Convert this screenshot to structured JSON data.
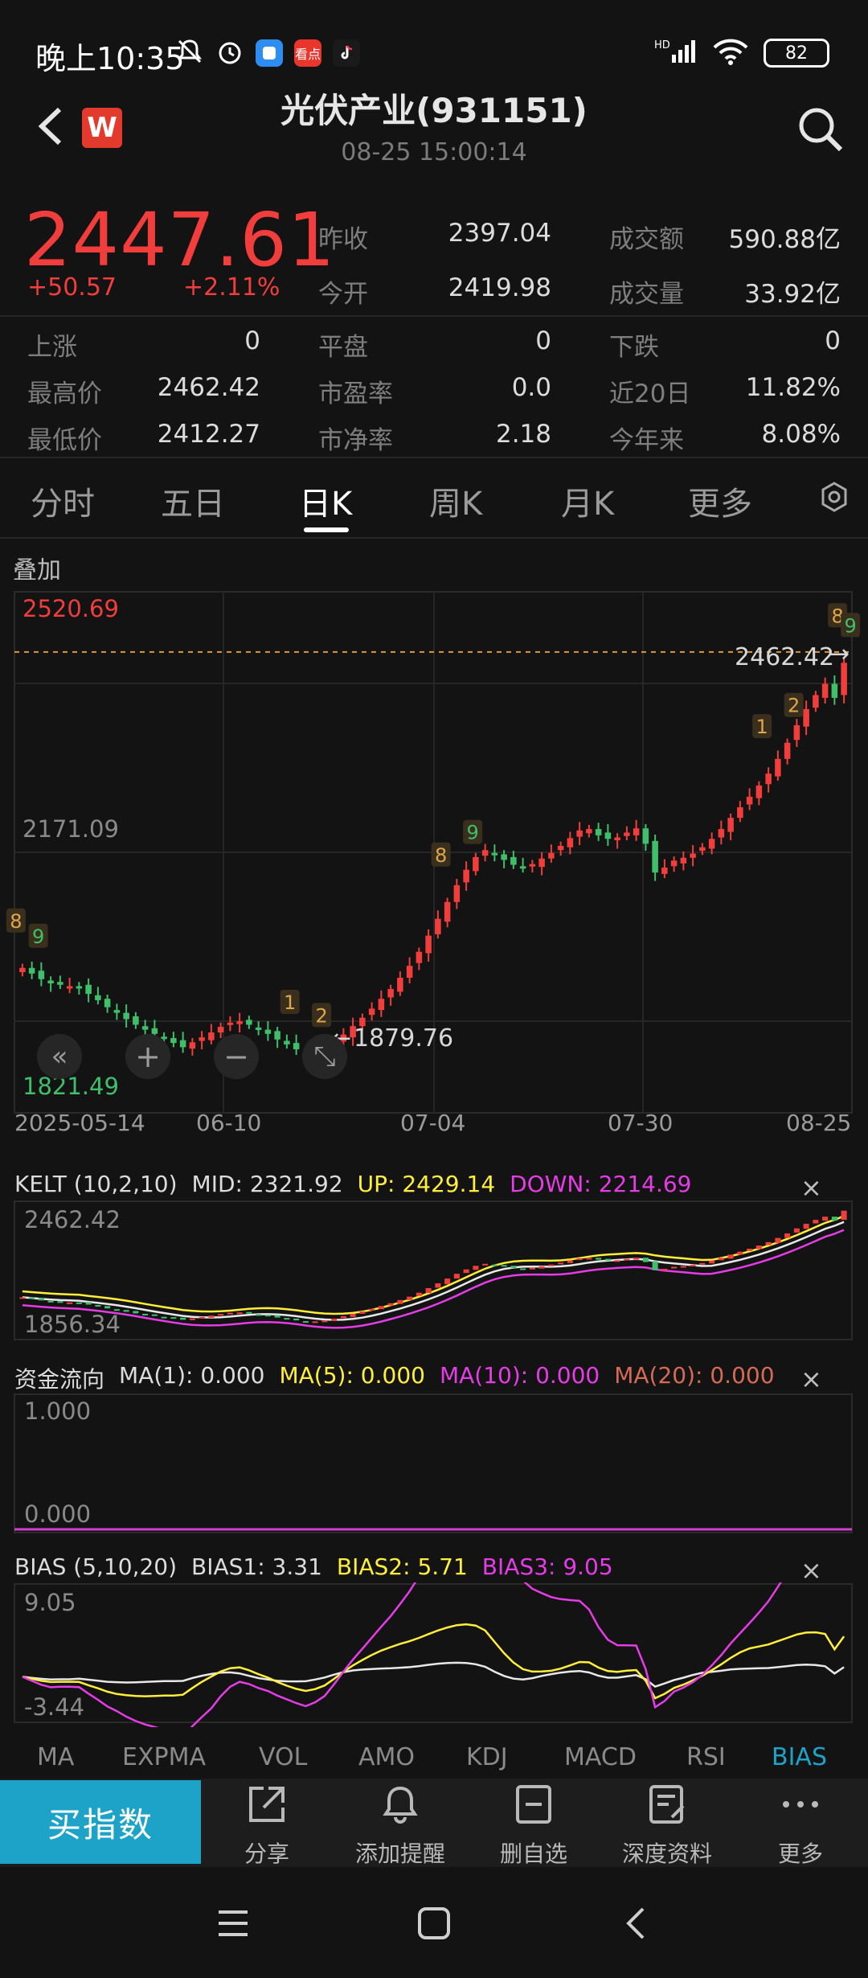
{
  "status_bar": {
    "time": "晚上10:35",
    "battery": "82",
    "mini_app_1": "看点",
    "signal_label": "HD"
  },
  "header": {
    "title": "光伏产业(931151)",
    "datetime": "08-25 15:00:14",
    "logo_letter": "W"
  },
  "quote": {
    "price": "2447.61",
    "change": "+50.57",
    "change_pct": "+2.11%",
    "prev_close_label": "昨收",
    "prev_close": "2397.04",
    "open_label": "今开",
    "open": "2419.98",
    "amount_label": "成交额",
    "amount": "590.88亿",
    "volume_label": "成交量",
    "volume": "33.92亿",
    "rise_label": "上涨",
    "rise": "0",
    "flat_label": "平盘",
    "flat": "0",
    "fall_label": "下跌",
    "fall": "0",
    "high_label": "最高价",
    "high": "2462.42",
    "pe_label": "市盈率",
    "pe": "0.0",
    "d20_label": "近20日",
    "d20": "11.82%",
    "low_label": "最低价",
    "low": "2412.27",
    "pb_label": "市净率",
    "pb": "2.18",
    "ytd_label": "今年来",
    "ytd": "8.08%"
  },
  "tabs": [
    "分时",
    "五日",
    "日K",
    "周K",
    "月K",
    "更多"
  ],
  "active_tab": "日K",
  "chart_overlay_label": "叠加",
  "chart_data": {
    "type": "candlestick",
    "y_max_label": "2520.69",
    "y_mid_label": "2171.09",
    "y_min_label": "1821.49",
    "ylim": [
      1821.49,
      2520.69
    ],
    "high_marker": "2462.42",
    "low_marker": "1879.76",
    "x_ticks": [
      "2025-05-14",
      "06-10",
      "07-04",
      "07-30",
      "08-25"
    ],
    "close": [
      2012,
      2004,
      1996,
      1990,
      1988,
      1986,
      1984,
      1975,
      1966,
      1956,
      1948,
      1939,
      1931,
      1924,
      1918,
      1912,
      1905,
      1899,
      1906,
      1913,
      1920,
      1928,
      1934,
      1936,
      1931,
      1924,
      1918,
      1910,
      1903,
      1896,
      1890,
      1891,
      1895,
      1905,
      1917,
      1929,
      1941,
      1954,
      1968,
      1982,
      1998,
      2015,
      2035,
      2058,
      2082,
      2106,
      2130,
      2152,
      2170,
      2180,
      2174,
      2166,
      2159,
      2156,
      2160,
      2168,
      2176,
      2186,
      2197,
      2208,
      2210,
      2201,
      2196,
      2198,
      2205,
      2211,
      2189,
      2148,
      2155,
      2165,
      2169,
      2175,
      2184,
      2196,
      2210,
      2226,
      2241,
      2256,
      2272,
      2289,
      2310,
      2333,
      2358,
      2381,
      2401,
      2417,
      2397,
      2447
    ],
    "markers": [
      {
        "label": "8",
        "color": "#e0a64b"
      },
      {
        "label": "9",
        "color": "#3fbf6a"
      },
      {
        "label": "1",
        "color": "#e0a64b"
      },
      {
        "label": "2",
        "color": "#e0a64b"
      },
      {
        "label": "8",
        "color": "#e0a64b"
      },
      {
        "label": "9",
        "color": "#3fbf6a"
      },
      {
        "label": "1",
        "color": "#e0a64b"
      },
      {
        "label": "2",
        "color": "#e0a64b"
      },
      {
        "label": "8",
        "color": "#e0a64b"
      },
      {
        "label": "9",
        "color": "#3fbf6a"
      }
    ]
  },
  "chart_controls": [
    "«",
    "+",
    "−",
    "⤡"
  ],
  "kelt": {
    "name": "KELT (10,2,10)",
    "mid": "MID: 2321.92",
    "up": "UP: 2429.14",
    "down": "DOWN: 2214.69",
    "y_top": "2462.42",
    "y_bottom": "1856.34"
  },
  "flow": {
    "name": "资金流向",
    "ma1": "MA(1): 0.000",
    "ma5": "MA(5): 0.000",
    "ma10": "MA(10): 0.000",
    "ma20": "MA(20): 0.000",
    "y_top": "1.000",
    "y_bottom": "0.000"
  },
  "bias": {
    "name": "BIAS (5,10,20)",
    "b1": "BIAS1: 3.31",
    "b2": "BIAS2: 5.71",
    "b3": "BIAS3: 9.05",
    "y_top": "9.05",
    "y_bottom": "-3.44"
  },
  "indicator_tabs": [
    "MA",
    "EXPMA",
    "VOL",
    "AMO",
    "KDJ",
    "MACD",
    "RSI",
    "BIAS"
  ],
  "bottom": {
    "buy": "买指数",
    "share": "分享",
    "alert": "添加提醒",
    "remove": "删自选",
    "deep": "深度资料",
    "more": "更多"
  },
  "colors": {
    "up": "#f23d3d",
    "down": "#3fbf6a",
    "accent": "#1ea3c8",
    "yellow": "#ffef3a",
    "magenta": "#e63ce6",
    "ma20": "#d66a55"
  }
}
